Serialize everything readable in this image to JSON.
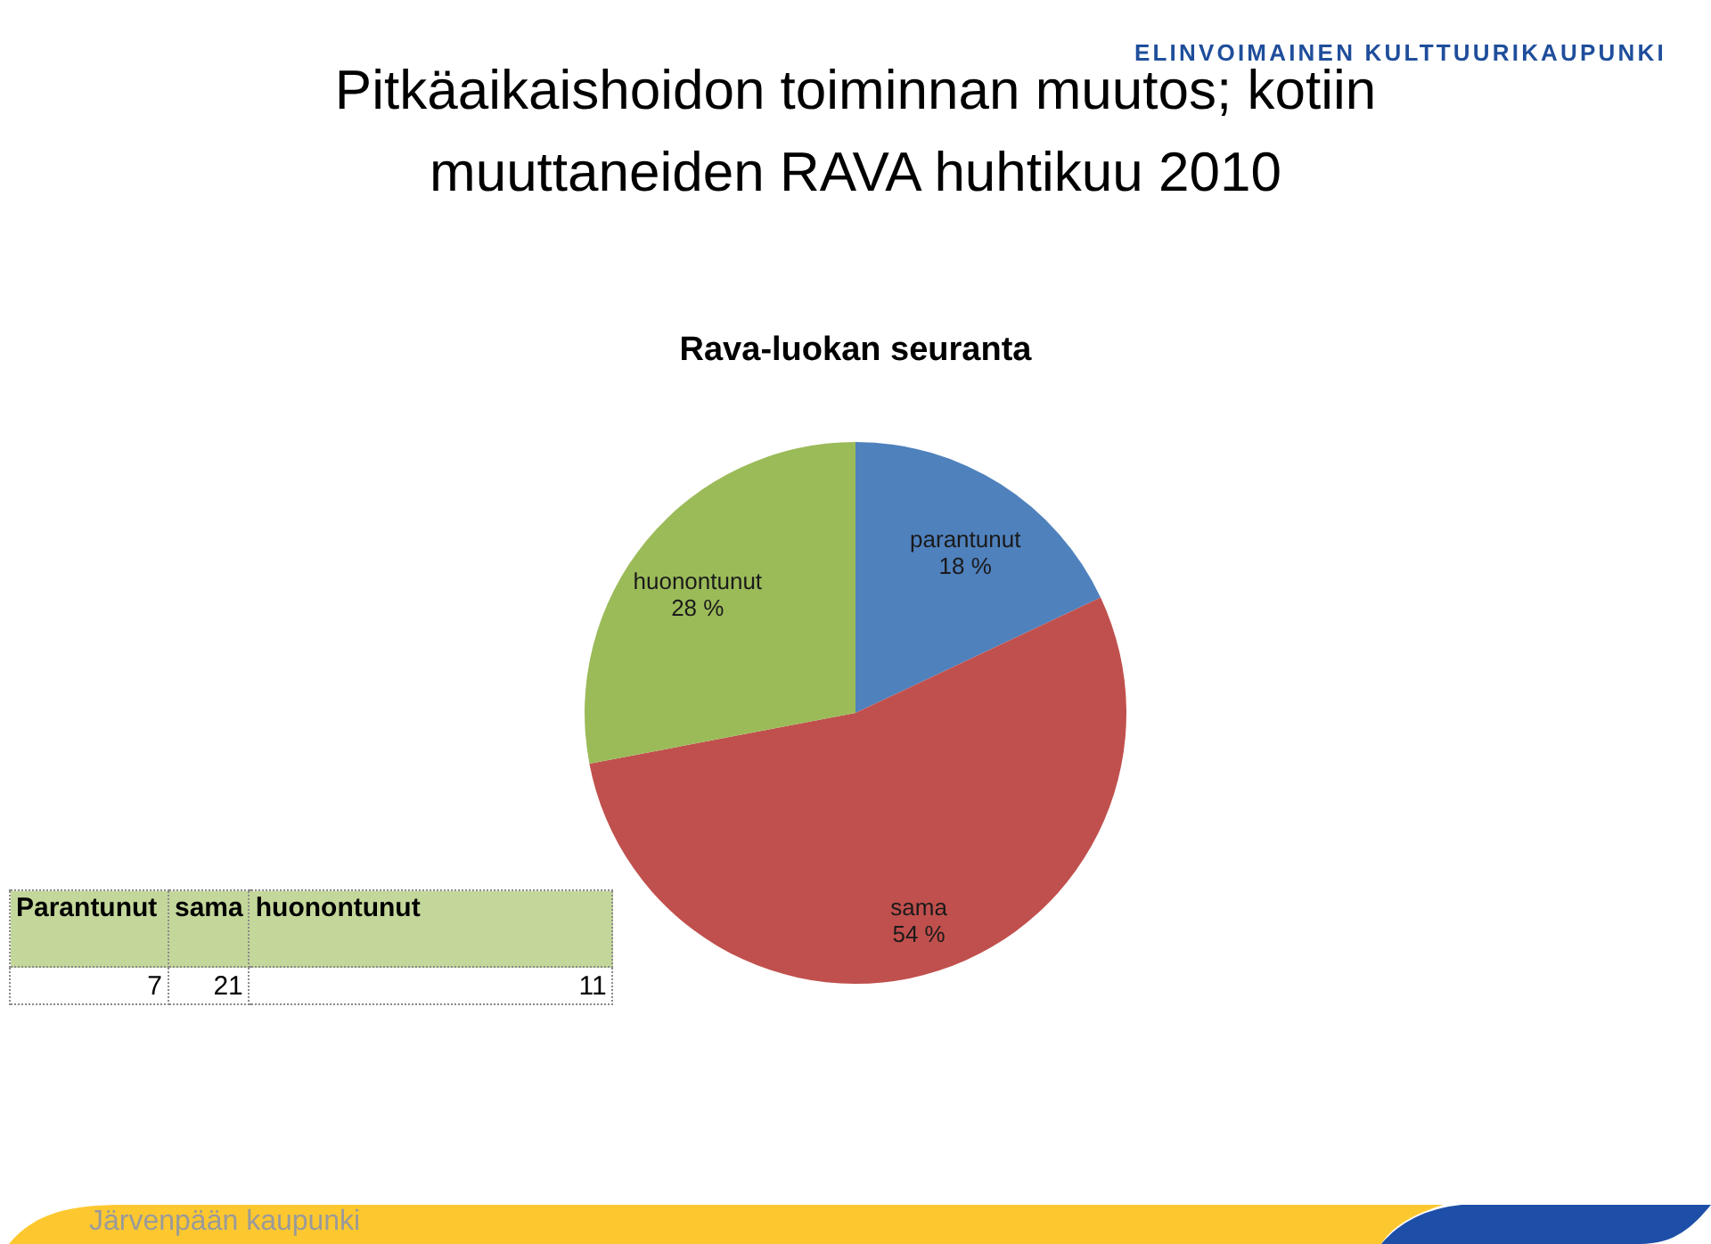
{
  "chart_data": [
    {
      "type": "pie",
      "title": "Pitkäaikaishoidon toiminnan muutos; kotiin muuttaneiden RAVA huhtikuu 2010",
      "subtitle": "Rava-luokan seuranta",
      "categories": [
        "parantunut",
        "sama",
        "huonontunut"
      ],
      "values": [
        18,
        54,
        28
      ],
      "colors": [
        "#4f81bd",
        "#c0504d",
        "#9bbb59"
      ],
      "value_labels": [
        "18 %",
        "54 %",
        "28 %"
      ],
      "annotations": [
        "ELINVOIMAINEN KULTTUURIKAUPUNKI",
        "Järvenpään kaupunki"
      ]
    },
    {
      "type": "other",
      "categories": [
        "Parantunut",
        "sama",
        "huonontunut"
      ],
      "values": [
        7,
        21,
        11
      ],
      "data_labels": true
    }
  ]
}
